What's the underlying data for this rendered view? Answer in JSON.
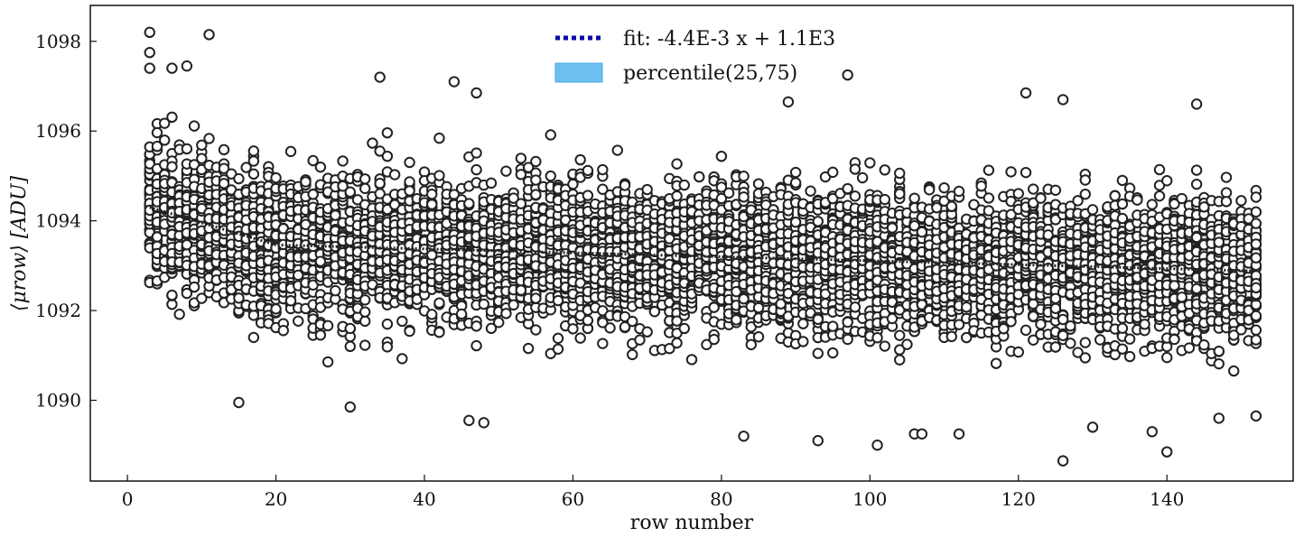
{
  "chart_data": {
    "type": "scatter",
    "title": "",
    "xlabel": "row number",
    "ylabel": "⟨μrow⟩ [ADU]",
    "xlim": [
      -5,
      157
    ],
    "ylim": [
      1088.2,
      1098.8
    ],
    "xticks": [
      0,
      20,
      40,
      60,
      80,
      100,
      120,
      140
    ],
    "yticks": [
      1090,
      1092,
      1094,
      1096,
      1098
    ],
    "grid": false,
    "legend_position": "top-center",
    "legend": [
      {
        "label": "fit: -4.4E-3 x + 1.1E3",
        "style": "dotted-line",
        "color": "#0a0aa8"
      },
      {
        "label": "percentile(25,75)",
        "style": "filled-patch",
        "color": "#6cbfee"
      }
    ],
    "scatter": {
      "x_range": [
        3,
        152
      ],
      "points_per_row": 40,
      "marker": "open-circle",
      "marker_edge": "#222222",
      "marker_face": "#ffffff",
      "note_band_y": [
        1091.3,
        1095.6
      ]
    },
    "fit_line": {
      "label": "fit: -4.4E-3 x + 1.1E3",
      "slope": -0.0044,
      "intercept": 1093.55
    },
    "percentile_band": {
      "label": "percentile(25,75)",
      "x": [
        3,
        10,
        20,
        40,
        60,
        80,
        100,
        120,
        140,
        152
      ],
      "lower": [
        1092.9,
        1092.8,
        1092.7,
        1092.6,
        1092.55,
        1092.5,
        1092.45,
        1092.45,
        1092.4,
        1092.4
      ],
      "upper": [
        1094.6,
        1094.3,
        1094.1,
        1093.9,
        1093.8,
        1093.7,
        1093.65,
        1093.6,
        1093.6,
        1093.55
      ]
    },
    "outliers": [
      {
        "x": 3,
        "y": 1098.2
      },
      {
        "x": 3,
        "y": 1097.75
      },
      {
        "x": 3,
        "y": 1097.4
      },
      {
        "x": 11,
        "y": 1098.15
      },
      {
        "x": 8,
        "y": 1097.45
      },
      {
        "x": 6,
        "y": 1097.4
      },
      {
        "x": 34,
        "y": 1097.2
      },
      {
        "x": 44,
        "y": 1097.1
      },
      {
        "x": 47,
        "y": 1096.85
      },
      {
        "x": 97,
        "y": 1097.25
      },
      {
        "x": 121,
        "y": 1096.85
      },
      {
        "x": 126,
        "y": 1096.7
      },
      {
        "x": 144,
        "y": 1096.6
      },
      {
        "x": 89,
        "y": 1096.65
      },
      {
        "x": 15,
        "y": 1089.95
      },
      {
        "x": 30,
        "y": 1089.85
      },
      {
        "x": 46,
        "y": 1089.55
      },
      {
        "x": 48,
        "y": 1089.5
      },
      {
        "x": 83,
        "y": 1089.2
      },
      {
        "x": 93,
        "y": 1089.1
      },
      {
        "x": 101,
        "y": 1089.0
      },
      {
        "x": 106,
        "y": 1089.25
      },
      {
        "x": 107,
        "y": 1089.25
      },
      {
        "x": 112,
        "y": 1089.25
      },
      {
        "x": 126,
        "y": 1088.65
      },
      {
        "x": 130,
        "y": 1089.4
      },
      {
        "x": 138,
        "y": 1089.3
      },
      {
        "x": 140,
        "y": 1088.85
      },
      {
        "x": 147,
        "y": 1089.6
      },
      {
        "x": 152,
        "y": 1089.65
      }
    ]
  }
}
